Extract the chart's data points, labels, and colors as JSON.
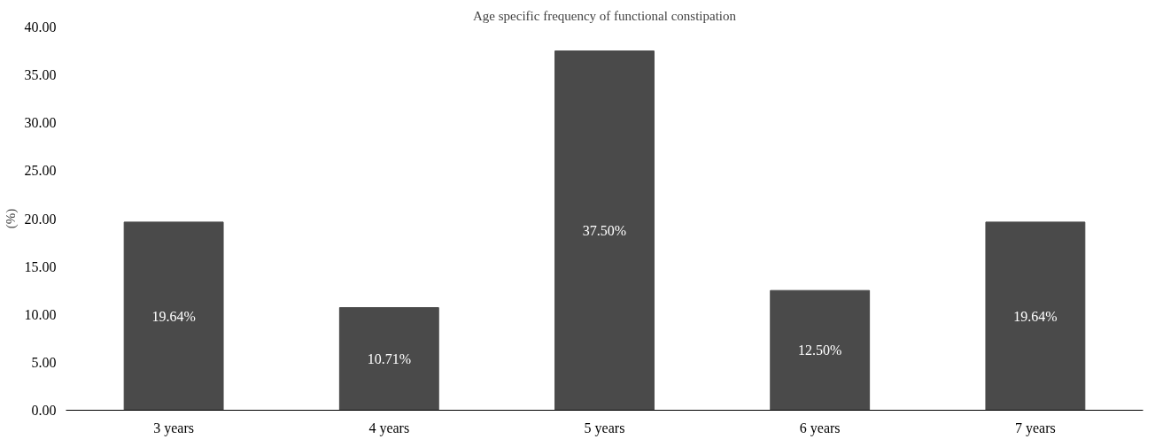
{
  "chart_data": {
    "type": "bar",
    "title": "Age specific frequency of functional constipation",
    "ylabel": "(%)",
    "categories": [
      "3 years",
      "4 years",
      "5 years",
      "6 years",
      "7 years"
    ],
    "values": [
      19.64,
      10.71,
      37.5,
      12.5,
      19.64
    ],
    "value_labels": [
      "19.64%",
      "10.71%",
      "37.50%",
      "12.50%",
      "19.64%"
    ],
    "color": "#4a4a4a",
    "ylim": [
      0,
      40
    ],
    "yticks": [
      {
        "value": 0,
        "label": "0.00"
      },
      {
        "value": 5,
        "label": "5.00"
      },
      {
        "value": 10,
        "label": "10.00"
      },
      {
        "value": 15,
        "label": "15.00"
      },
      {
        "value": 20,
        "label": "20.00"
      },
      {
        "value": 25,
        "label": "25.00"
      },
      {
        "value": 30,
        "label": "30.00"
      },
      {
        "value": 35,
        "label": "35.00"
      },
      {
        "value": 40,
        "label": "40.00"
      }
    ],
    "grid": false
  }
}
